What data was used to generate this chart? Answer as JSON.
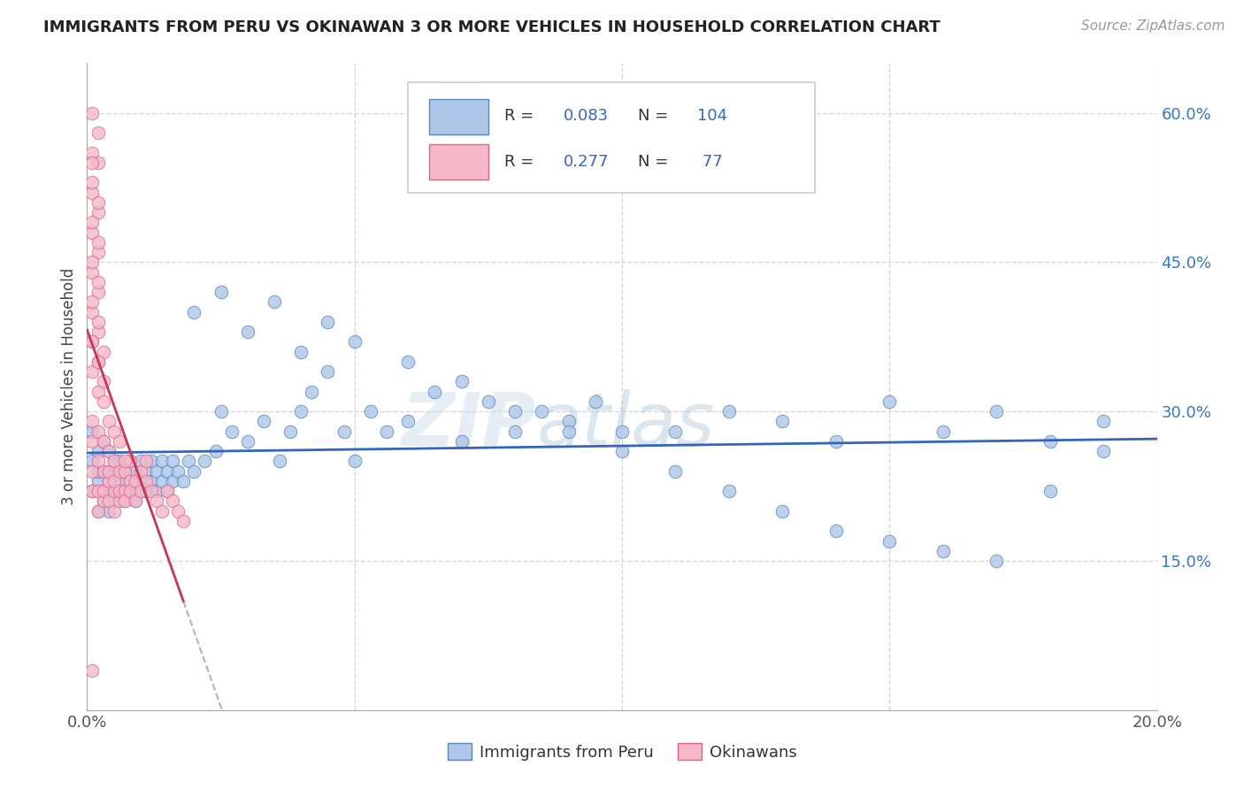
{
  "title": "IMMIGRANTS FROM PERU VS OKINAWAN 3 OR MORE VEHICLES IN HOUSEHOLD CORRELATION CHART",
  "source": "Source: ZipAtlas.com",
  "ylabel": "3 or more Vehicles in Household",
  "watermark_zip": "ZIP",
  "watermark_atlas": "atlas",
  "blue_R": 0.083,
  "blue_N": 104,
  "pink_R": 0.277,
  "pink_N": 77,
  "blue_color": "#aec6e8",
  "pink_color": "#f4b8c8",
  "blue_edge": "#5588bb",
  "pink_edge": "#dd6688",
  "blue_line_color": "#3366bb",
  "pink_line_color": "#cc3355",
  "blue_series_label": "Immigrants from Peru",
  "pink_series_label": "Okinawans",
  "xmin": 0.0,
  "xmax": 0.2,
  "ymin": 0.0,
  "ymax": 0.65,
  "blue_x": [
    0.001,
    0.001,
    0.001,
    0.002,
    0.002,
    0.002,
    0.002,
    0.003,
    0.003,
    0.003,
    0.003,
    0.004,
    0.004,
    0.004,
    0.004,
    0.005,
    0.005,
    0.005,
    0.005,
    0.006,
    0.006,
    0.006,
    0.007,
    0.007,
    0.007,
    0.008,
    0.008,
    0.008,
    0.009,
    0.009,
    0.009,
    0.01,
    0.01,
    0.01,
    0.011,
    0.011,
    0.012,
    0.012,
    0.013,
    0.013,
    0.014,
    0.014,
    0.015,
    0.015,
    0.016,
    0.016,
    0.017,
    0.018,
    0.019,
    0.02,
    0.022,
    0.024,
    0.025,
    0.027,
    0.03,
    0.033,
    0.036,
    0.038,
    0.04,
    0.042,
    0.045,
    0.048,
    0.05,
    0.053,
    0.056,
    0.06,
    0.065,
    0.07,
    0.075,
    0.08,
    0.085,
    0.09,
    0.095,
    0.1,
    0.11,
    0.12,
    0.13,
    0.14,
    0.15,
    0.16,
    0.17,
    0.18,
    0.19,
    0.02,
    0.025,
    0.03,
    0.035,
    0.04,
    0.045,
    0.05,
    0.06,
    0.07,
    0.08,
    0.09,
    0.1,
    0.11,
    0.12,
    0.13,
    0.14,
    0.15,
    0.16,
    0.17,
    0.18,
    0.19
  ],
  "blue_y": [
    0.22,
    0.25,
    0.28,
    0.2,
    0.23,
    0.26,
    0.24,
    0.21,
    0.24,
    0.27,
    0.22,
    0.2,
    0.23,
    0.26,
    0.24,
    0.21,
    0.24,
    0.22,
    0.25,
    0.22,
    0.25,
    0.23,
    0.21,
    0.24,
    0.22,
    0.23,
    0.25,
    0.22,
    0.22,
    0.24,
    0.21,
    0.23,
    0.25,
    0.22,
    0.22,
    0.24,
    0.23,
    0.25,
    0.22,
    0.24,
    0.23,
    0.25,
    0.22,
    0.24,
    0.23,
    0.25,
    0.24,
    0.23,
    0.25,
    0.24,
    0.25,
    0.26,
    0.3,
    0.28,
    0.27,
    0.29,
    0.25,
    0.28,
    0.3,
    0.32,
    0.34,
    0.28,
    0.25,
    0.3,
    0.28,
    0.29,
    0.32,
    0.27,
    0.31,
    0.28,
    0.3,
    0.29,
    0.31,
    0.28,
    0.28,
    0.3,
    0.29,
    0.27,
    0.31,
    0.28,
    0.3,
    0.27,
    0.29,
    0.4,
    0.42,
    0.38,
    0.41,
    0.36,
    0.39,
    0.37,
    0.35,
    0.33,
    0.3,
    0.28,
    0.26,
    0.24,
    0.22,
    0.2,
    0.18,
    0.17,
    0.16,
    0.15,
    0.22,
    0.26
  ],
  "pink_x": [
    0.001,
    0.001,
    0.001,
    0.001,
    0.002,
    0.002,
    0.002,
    0.002,
    0.003,
    0.003,
    0.003,
    0.003,
    0.004,
    0.004,
    0.004,
    0.004,
    0.005,
    0.005,
    0.005,
    0.005,
    0.006,
    0.006,
    0.006,
    0.007,
    0.007,
    0.007,
    0.008,
    0.008,
    0.008,
    0.009,
    0.009,
    0.01,
    0.01,
    0.011,
    0.011,
    0.012,
    0.013,
    0.014,
    0.015,
    0.016,
    0.017,
    0.018,
    0.001,
    0.002,
    0.003,
    0.004,
    0.005,
    0.006,
    0.007,
    0.001,
    0.002,
    0.003,
    0.001,
    0.002,
    0.003,
    0.001,
    0.002,
    0.001,
    0.002,
    0.001,
    0.002,
    0.001,
    0.001,
    0.002,
    0.002,
    0.001,
    0.001,
    0.002,
    0.001,
    0.002,
    0.001,
    0.002,
    0.001,
    0.002,
    0.001,
    0.002,
    0.001
  ],
  "pink_y": [
    0.24,
    0.27,
    0.29,
    0.22,
    0.22,
    0.25,
    0.28,
    0.2,
    0.21,
    0.24,
    0.27,
    0.22,
    0.23,
    0.26,
    0.24,
    0.21,
    0.22,
    0.25,
    0.23,
    0.2,
    0.21,
    0.24,
    0.22,
    0.22,
    0.24,
    0.21,
    0.23,
    0.25,
    0.22,
    0.23,
    0.21,
    0.22,
    0.24,
    0.23,
    0.25,
    0.22,
    0.21,
    0.2,
    0.22,
    0.21,
    0.2,
    0.19,
    0.34,
    0.32,
    0.31,
    0.29,
    0.28,
    0.27,
    0.25,
    0.37,
    0.35,
    0.33,
    0.4,
    0.38,
    0.36,
    0.44,
    0.42,
    0.48,
    0.46,
    0.52,
    0.5,
    0.56,
    0.6,
    0.58,
    0.55,
    0.55,
    0.53,
    0.51,
    0.49,
    0.47,
    0.45,
    0.43,
    0.41,
    0.39,
    0.37,
    0.35,
    0.04
  ]
}
